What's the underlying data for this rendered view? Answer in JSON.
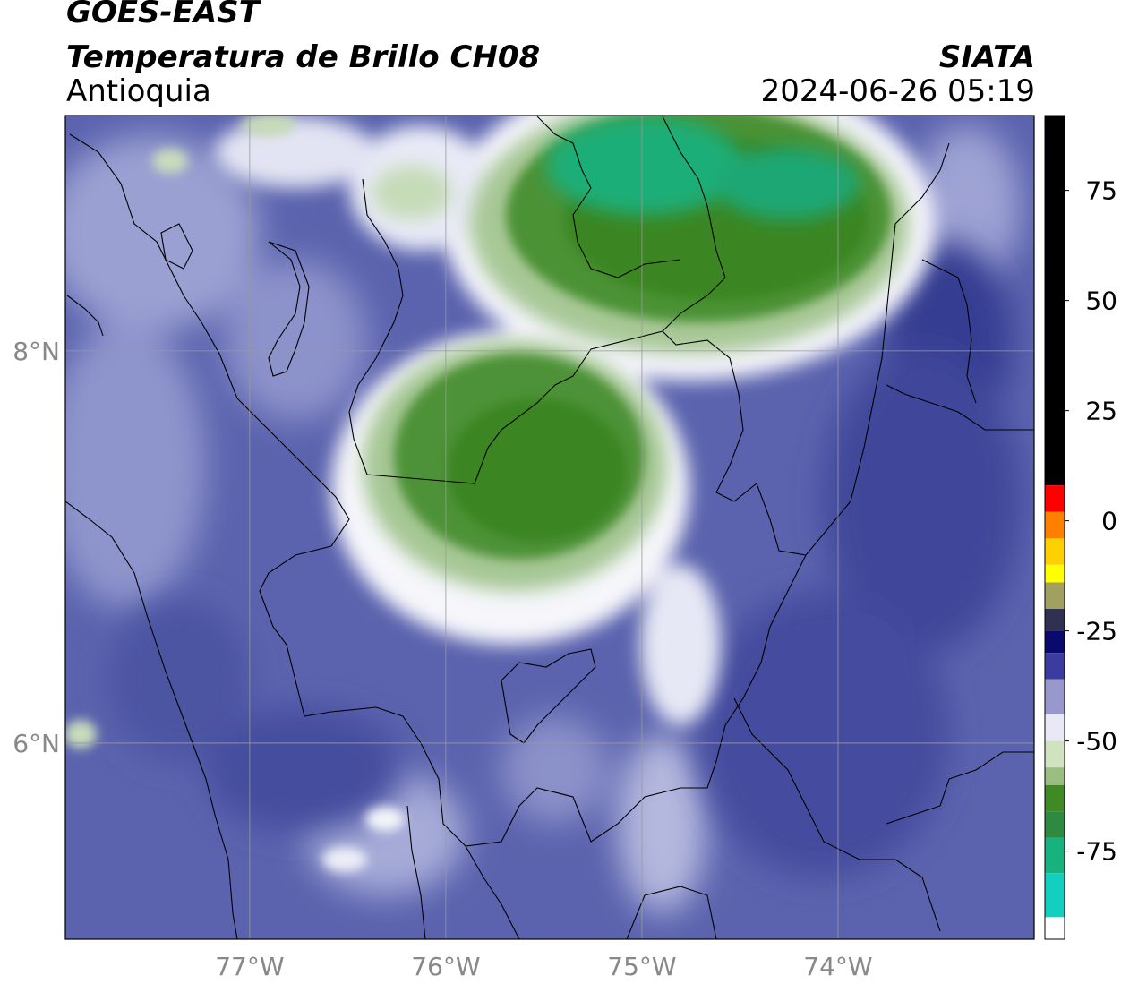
{
  "header": {
    "satellite": "GOES-EAST",
    "product": "Temperatura de Brillo CH08",
    "region": "Antioquia",
    "organization": "SIATA",
    "datetime": "2024-06-26 05:19"
  },
  "map": {
    "lon_range": [
      -77.94,
      -73.0
    ],
    "lat_range": [
      5.0,
      9.2
    ],
    "lon_ticks": [
      {
        "value": -77,
        "label": "77°W"
      },
      {
        "value": -76,
        "label": "76°W"
      },
      {
        "value": -75,
        "label": "75°W"
      },
      {
        "value": -74,
        "label": "74°W"
      }
    ],
    "lat_ticks": [
      {
        "value": 8,
        "label": "8°N"
      },
      {
        "value": 6,
        "label": "6°N"
      }
    ],
    "grid": true,
    "colors": {
      "background_blue": "#5a62ae",
      "deep_blue": "#3d4596",
      "cloud_white": "#ffffff",
      "cloud_green": "#3d8a28",
      "cloud_teal": "#1ab27c",
      "border": "#000000",
      "grid": "#9a9a9a"
    }
  },
  "colorbar": {
    "range": [
      -95,
      92
    ],
    "ticks": [
      {
        "value": 75,
        "label": "75"
      },
      {
        "value": 50,
        "label": "50"
      },
      {
        "value": 25,
        "label": "25"
      },
      {
        "value": 0,
        "label": "0"
      },
      {
        "value": -25,
        "label": "-25"
      },
      {
        "value": -50,
        "label": "-50"
      },
      {
        "value": -75,
        "label": "-75"
      }
    ],
    "segments": [
      {
        "from": 8,
        "to": 92,
        "color": "#000000"
      },
      {
        "from": 2,
        "to": 8,
        "color": "#ff0000"
      },
      {
        "from": -4,
        "to": 2,
        "color": "#ff7f00"
      },
      {
        "from": -10,
        "to": -4,
        "color": "#ffd000"
      },
      {
        "from": -14,
        "to": -10,
        "color": "#ffff00"
      },
      {
        "from": -20,
        "to": -14,
        "color": "#a0a060"
      },
      {
        "from": -25,
        "to": -20,
        "color": "#303050"
      },
      {
        "from": -30,
        "to": -25,
        "color": "#0a0a6e"
      },
      {
        "from": -36,
        "to": -30,
        "color": "#3c3ca0"
      },
      {
        "from": -44,
        "to": -36,
        "color": "#9898cc"
      },
      {
        "from": -50,
        "to": -44,
        "color": "#e8e8f6"
      },
      {
        "from": -56,
        "to": -50,
        "color": "#d0e2c0"
      },
      {
        "from": -60,
        "to": -56,
        "color": "#9abd80"
      },
      {
        "from": -66,
        "to": -60,
        "color": "#3f8a24"
      },
      {
        "from": -72,
        "to": -66,
        "color": "#2e8a40"
      },
      {
        "from": -80,
        "to": -72,
        "color": "#18b27e"
      },
      {
        "from": -90,
        "to": -80,
        "color": "#12cfc0"
      },
      {
        "from": -95,
        "to": -90,
        "color": "#ffffff"
      }
    ]
  }
}
